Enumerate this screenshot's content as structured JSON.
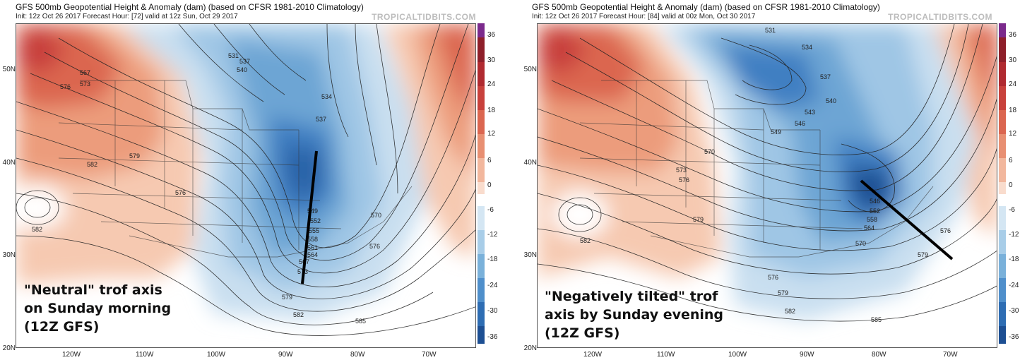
{
  "colorbar": {
    "labels": [
      "36",
      "30",
      "24",
      "18",
      "12",
      "6",
      "0",
      "-6",
      "-12",
      "-18",
      "-24",
      "-30",
      "-36"
    ],
    "colors": [
      "#7b2a8c",
      "#8e1f2a",
      "#b02a30",
      "#c8413c",
      "#db6650",
      "#e88f72",
      "#f2b79d",
      "#f9dccd",
      "#ffffff",
      "#d4e6f3",
      "#a8cde8",
      "#7ab1da",
      "#4f8fcb",
      "#2e6db3",
      "#1d4f93",
      "#143770",
      "#0b214b"
    ]
  },
  "panels": [
    {
      "title": "GFS 500mb Geopotential Height & Anomaly (dam) (based on CFSR 1981-2010 Climatology)",
      "subtitle": "Init: 12z Oct 26 2017   Forecast Hour: [72]   valid at 12z Sun, Oct 29 2017",
      "watermark": "TROPICALTIDBITS.COM",
      "lat_labels": [
        "50N",
        "40N",
        "30N",
        "20N"
      ],
      "lon_labels": [
        "120W",
        "110W",
        "100W",
        "90W",
        "80W",
        "70W"
      ],
      "contour_labels": [
        "567",
        "573",
        "576",
        "579",
        "582",
        "576",
        "582",
        "540",
        "537",
        "534",
        "537",
        "549",
        "552",
        "555",
        "558",
        "561",
        "564",
        "567",
        "570",
        "576",
        "579",
        "582",
        "585",
        "573",
        "531"
      ],
      "caption": "\"Neutral\" trof axis\non Sunday morning\n(12Z GFS)"
    },
    {
      "title": "GFS 500mb Geopotential Height & Anomaly (dam) (based on CFSR 1981-2010 Climatology)",
      "subtitle": "Init: 12z Oct 26 2017   Forecast Hour: [84]   valid at 00z Mon, Oct 30 2017",
      "watermark": "TROPICALTIDBITS.COM",
      "lat_labels": [
        "50N",
        "40N",
        "30N",
        "20N"
      ],
      "lon_labels": [
        "120W",
        "110W",
        "100W",
        "90W",
        "80W",
        "70W"
      ],
      "contour_labels": [
        "531",
        "534",
        "537",
        "540",
        "543",
        "546",
        "549",
        "570",
        "573",
        "576",
        "579",
        "582",
        "576",
        "579",
        "582",
        "585",
        "570",
        "564",
        "558",
        "552",
        "546",
        "576",
        "579"
      ],
      "caption": "\"Negatively tilted\" trof\naxis by Sunday evening\n(12Z GFS)"
    }
  ]
}
